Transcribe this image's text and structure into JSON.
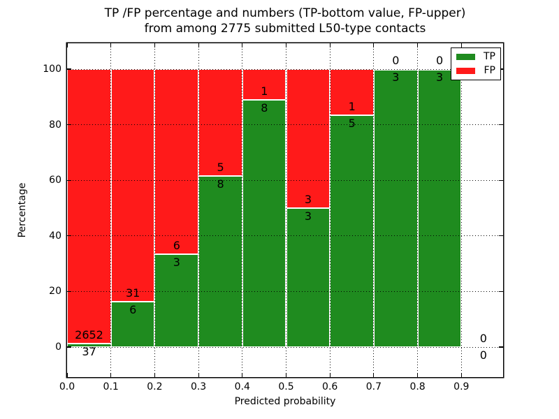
{
  "title": {
    "line1": "TP /FP percentage and numbers (TP-bottom value, FP-upper)",
    "line2": "from among 2775 submitted L50-type contacts"
  },
  "axes": {
    "xlabel": "Predicted probability",
    "ylabel": "Percentage"
  },
  "legend": {
    "position": "upper-right",
    "items": [
      {
        "label": "TP",
        "color": "#1f8b1f"
      },
      {
        "label": "FP",
        "color": "#ff1a1a"
      }
    ]
  },
  "chart_data": {
    "type": "bar",
    "stacked": true,
    "normalized": "percent",
    "title": "TP /FP percentage and numbers (TP-bottom value, FP-upper) from among 2775 submitted L50-type contacts",
    "total_submitted": 2775,
    "xlabel": "Predicted probability",
    "ylabel": "Percentage",
    "xlim": [
      0.0,
      1.0
    ],
    "ylim": [
      -11,
      109
    ],
    "grid": true,
    "x_bins": [
      [
        0.0,
        0.1
      ],
      [
        0.1,
        0.2
      ],
      [
        0.2,
        0.3
      ],
      [
        0.3,
        0.4
      ],
      [
        0.4,
        0.5
      ],
      [
        0.5,
        0.6
      ],
      [
        0.6,
        0.7
      ],
      [
        0.7,
        0.8
      ],
      [
        0.8,
        0.9
      ],
      [
        0.9,
        1.0
      ]
    ],
    "x_tick_labels": [
      "0.0",
      "0.1",
      "0.2",
      "0.3",
      "0.4",
      "0.5",
      "0.6",
      "0.7",
      "0.8",
      "0.9"
    ],
    "y_tick_labels": [
      "0",
      "20",
      "40",
      "60",
      "80",
      "100"
    ],
    "y_tick_values": [
      0,
      20,
      40,
      60,
      80,
      100
    ],
    "series": [
      {
        "name": "TP",
        "color": "#1f8b1f",
        "counts": [
          37,
          6,
          3,
          8,
          8,
          3,
          5,
          3,
          3,
          0
        ],
        "pct": [
          1.38,
          16.22,
          33.33,
          61.54,
          88.89,
          50.0,
          83.33,
          100.0,
          100.0,
          0
        ]
      },
      {
        "name": "FP",
        "color": "#ff1a1a",
        "counts": [
          2652,
          31,
          6,
          5,
          1,
          3,
          1,
          0,
          0,
          0
        ],
        "pct": [
          98.62,
          83.78,
          66.67,
          38.46,
          11.11,
          50.0,
          16.67,
          0.0,
          0.0,
          0
        ]
      }
    ]
  }
}
